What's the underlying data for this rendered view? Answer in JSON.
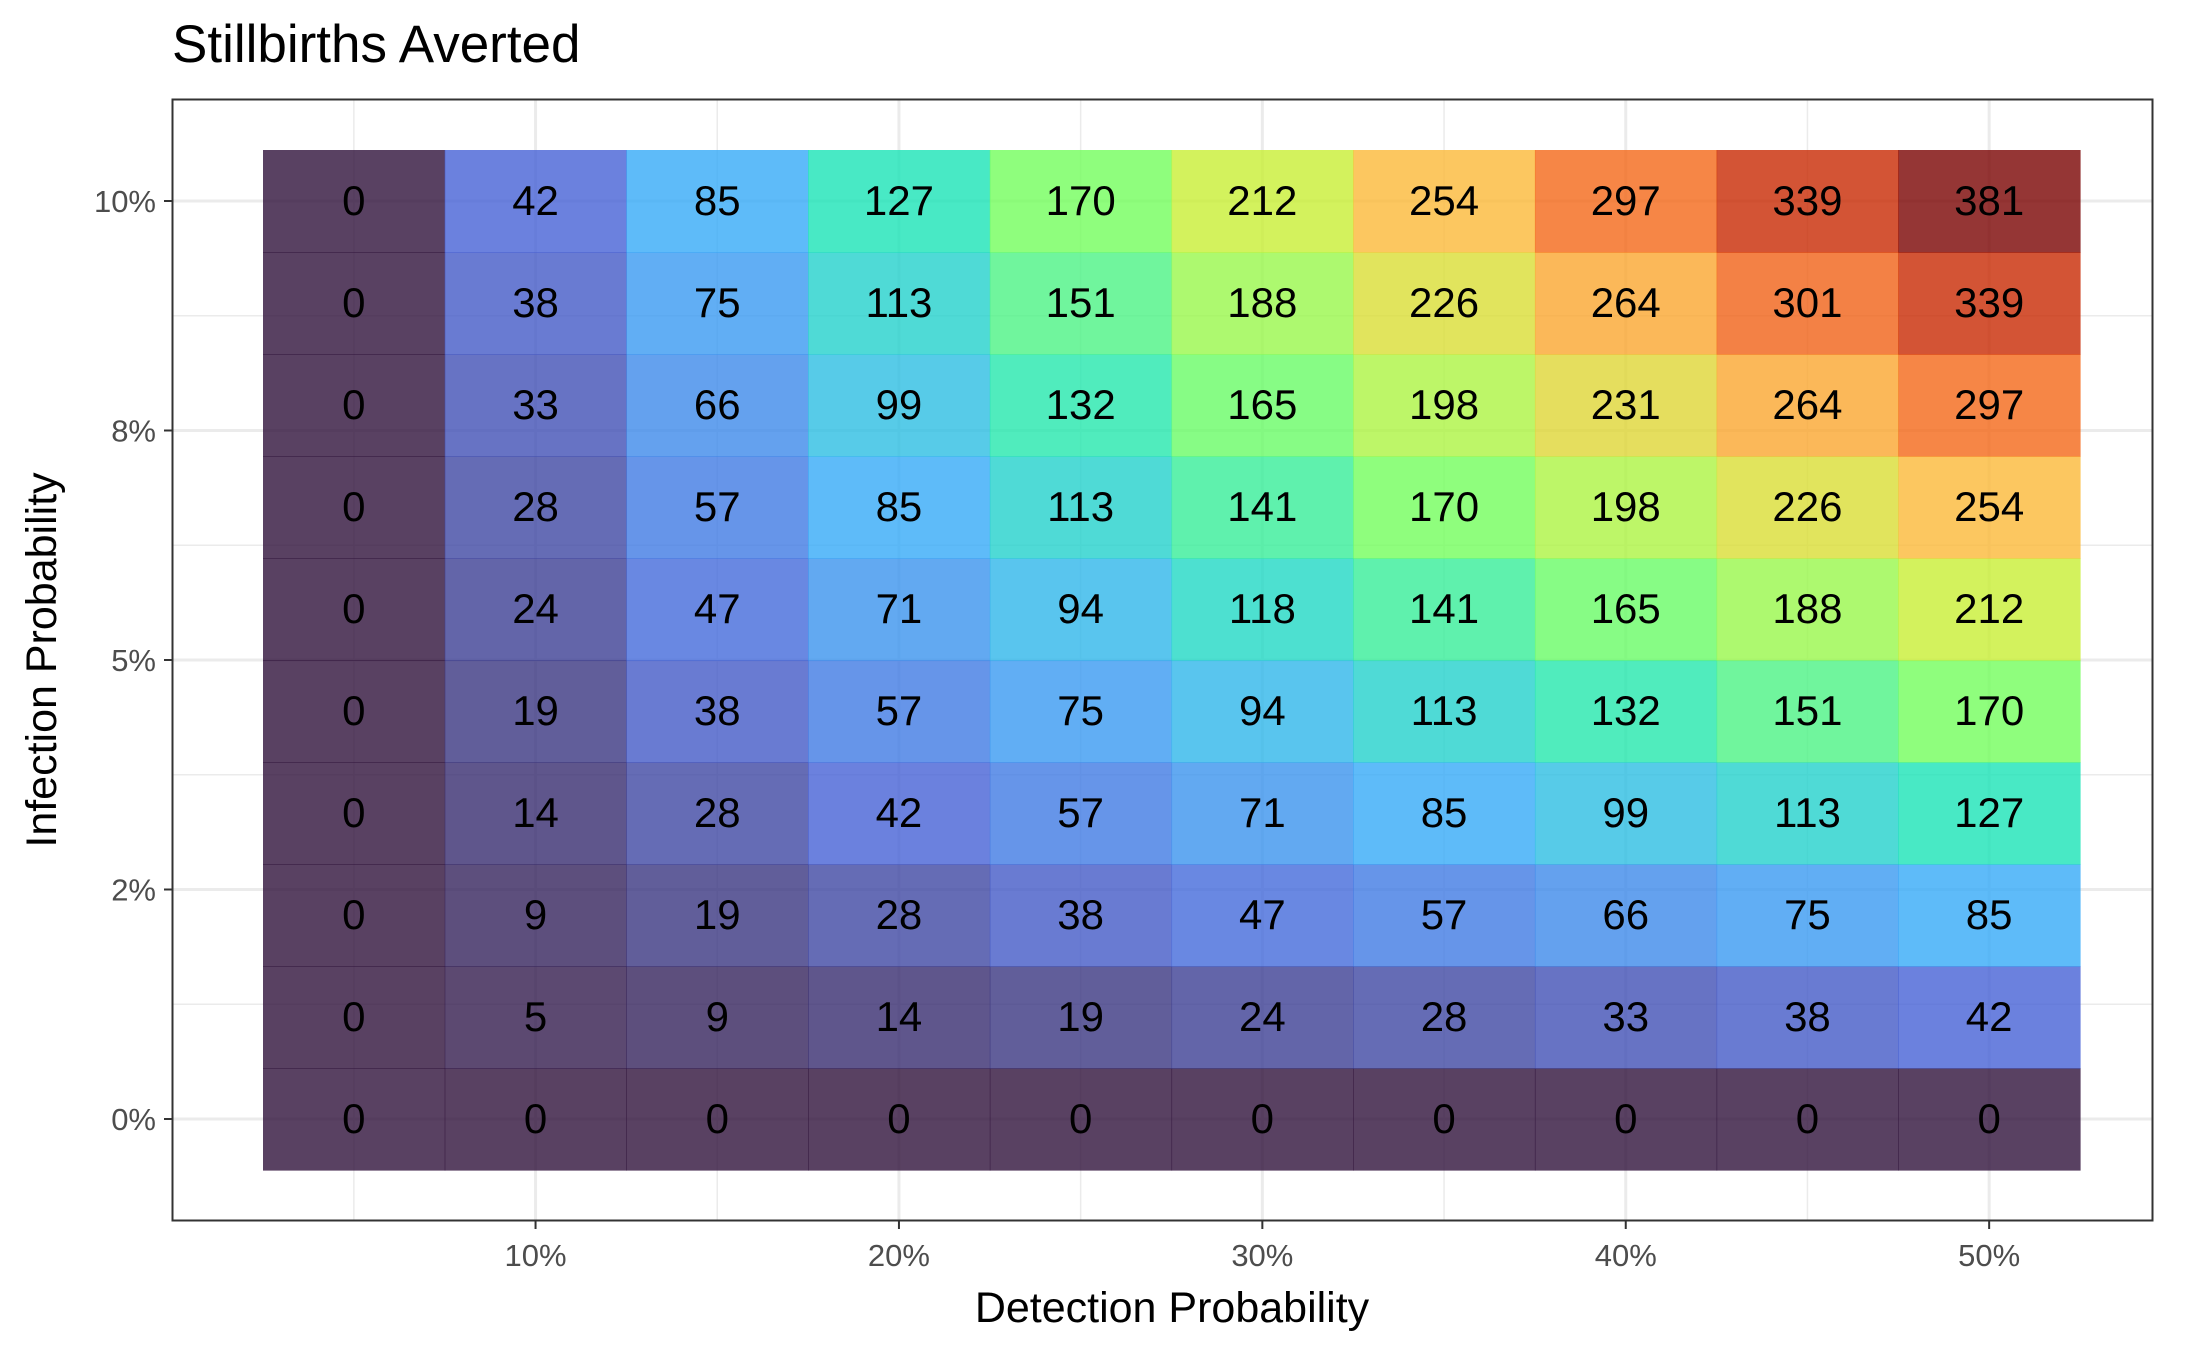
{
  "chart_data": {
    "type": "heatmap",
    "title": "Stillbirths Averted",
    "xlabel": "Detection Probability",
    "ylabel": "Infection Probability",
    "x": [
      0.05,
      0.1,
      0.15,
      0.2,
      0.25,
      0.3,
      0.35,
      0.4,
      0.45,
      0.5
    ],
    "y": [
      0.0,
      0.011,
      0.022,
      0.033,
      0.044,
      0.056,
      0.067,
      0.078,
      0.089,
      0.1
    ],
    "x_tick_values": [
      0.1,
      0.2,
      0.3,
      0.4,
      0.5
    ],
    "x_tick_labels": [
      "10%",
      "20%",
      "30%",
      "40%",
      "50%"
    ],
    "y_tick_values": [
      0.0,
      0.025,
      0.05,
      0.075,
      0.1
    ],
    "y_tick_labels": [
      "0%",
      "2%",
      "5%",
      "8%",
      "10%"
    ],
    "values": [
      [
        0,
        0,
        0,
        0,
        0,
        0,
        0,
        0,
        0,
        0
      ],
      [
        0,
        5,
        9,
        14,
        19,
        24,
        28,
        33,
        38,
        42
      ],
      [
        0,
        9,
        19,
        28,
        38,
        47,
        57,
        66,
        75,
        85
      ],
      [
        0,
        14,
        28,
        42,
        57,
        71,
        85,
        99,
        113,
        127
      ],
      [
        0,
        19,
        38,
        57,
        75,
        94,
        113,
        132,
        151,
        170
      ],
      [
        0,
        24,
        47,
        71,
        94,
        118,
        141,
        165,
        188,
        212
      ],
      [
        0,
        28,
        57,
        85,
        113,
        141,
        170,
        198,
        226,
        254
      ],
      [
        0,
        33,
        66,
        99,
        132,
        165,
        198,
        231,
        264,
        297
      ],
      [
        0,
        38,
        75,
        113,
        151,
        188,
        226,
        264,
        301,
        339
      ],
      [
        0,
        42,
        85,
        127,
        170,
        212,
        254,
        297,
        339,
        381
      ]
    ],
    "value_range": [
      0,
      381
    ],
    "colormap": "turbo",
    "color_stops": [
      "#30123b",
      "#4662d7",
      "#36aaf9",
      "#1ae4b6",
      "#72fe5e",
      "#c8ef34",
      "#fbb938",
      "#f56918",
      "#c92903",
      "#7a0403"
    ],
    "tile_opacity": 0.8,
    "grid": true,
    "legend": "none",
    "theme": "bw"
  }
}
